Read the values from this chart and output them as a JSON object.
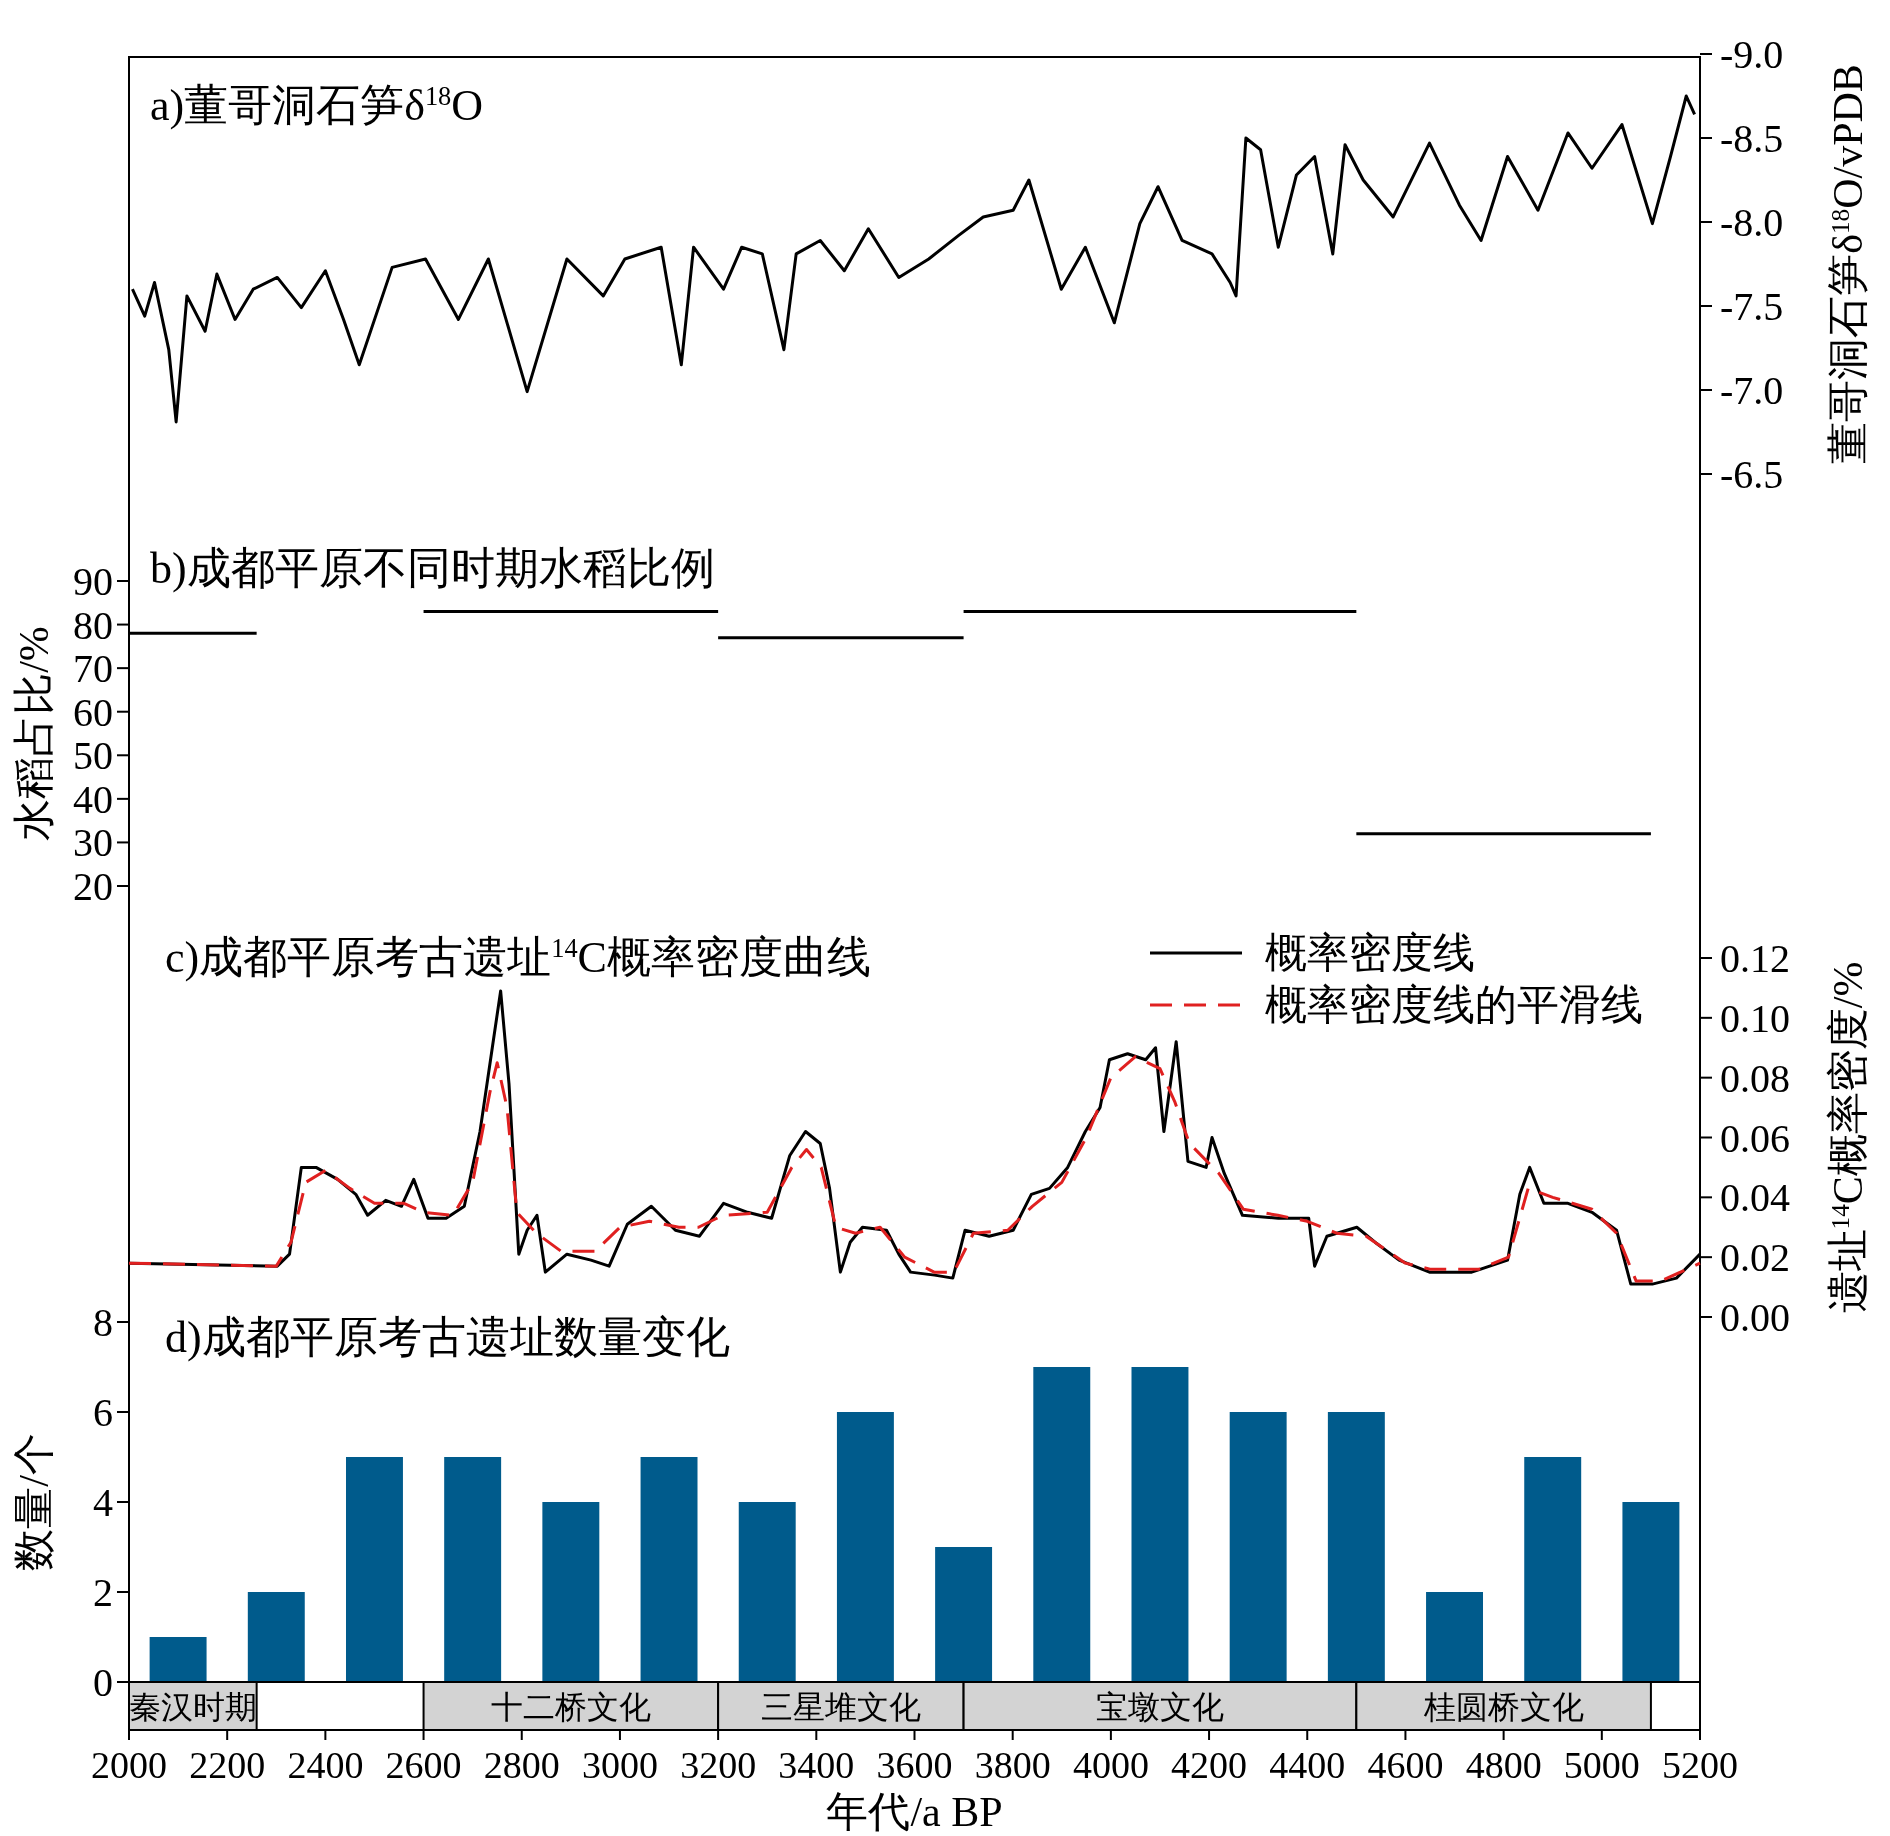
{
  "chart_data": [
    {
      "type": "line",
      "title": "a)董哥洞石笋δ$^{18}$O",
      "ylabel": "董哥洞石笋δ$^{18}$O/vPDB",
      "xlim": [
        2000,
        5200
      ],
      "ylim": [
        -6.5,
        -9.0
      ],
      "tick_labels": "y",
      "yticks": [
        {
          "value": -9.0,
          "label": "-9.0"
        },
        {
          "value": -8.5,
          "label": "-8.5"
        },
        {
          "value": -8.0,
          "label": "-8.0"
        },
        {
          "value": -7.5,
          "label": "-7.5"
        },
        {
          "value": -7.0,
          "label": "-7.0"
        },
        {
          "value": -6.5,
          "label": "-6.5"
        }
      ],
      "series": [
        {
          "color": "#000000",
          "x": [
            2007,
            2032,
            2052,
            2081,
            2096,
            2118,
            2155,
            2179,
            2216,
            2253,
            2302,
            2351,
            2400,
            2437,
            2469,
            2536,
            2604,
            2671,
            2732,
            2790,
            2811,
            2892,
            2966,
            3010,
            3084,
            3125,
            3150,
            3211,
            3248,
            3290,
            3334,
            3359,
            3408,
            3457,
            3506,
            3568,
            3629,
            3690,
            3740,
            3801,
            3833,
            3899,
            3948,
            4007,
            4059,
            4096,
            4145,
            4206,
            4243,
            4255,
            4275,
            4305,
            4341,
            4378,
            4415,
            4452,
            4477,
            4514,
            4575,
            4649,
            4710,
            4754,
            4808,
            4870,
            4931,
            4980,
            5041,
            5103,
            5140,
            5172,
            5189
          ],
          "values": [
            -7.6,
            -7.44,
            -7.64,
            -7.24,
            -6.81,
            -7.56,
            -7.35,
            -7.69,
            -7.42,
            -7.6,
            -7.67,
            -7.49,
            -7.71,
            -7.42,
            -7.15,
            -7.73,
            -7.78,
            -7.42,
            -7.78,
            -7.2,
            -6.99,
            -7.78,
            -7.56,
            -7.78,
            -7.85,
            -7.15,
            -7.85,
            -7.6,
            -7.85,
            -7.81,
            -7.24,
            -7.81,
            -7.89,
            -7.71,
            -7.96,
            -7.67,
            -7.78,
            -7.92,
            -8.03,
            -8.07,
            -8.25,
            -7.6,
            -7.85,
            -7.4,
            -7.99,
            -8.21,
            -7.89,
            -7.81,
            -7.64,
            -7.56,
            -8.5,
            -8.43,
            -7.85,
            -8.28,
            -8.39,
            -7.81,
            -8.46,
            -8.25,
            -8.03,
            -8.47,
            -8.1,
            -7.89,
            -8.39,
            -8.07,
            -8.53,
            -8.32,
            -8.58,
            -7.99,
            -8.39,
            -8.75,
            -8.64
          ]
        }
      ]
    },
    {
      "type": "line",
      "title": "b)成都平原不同时期水稻比例",
      "ylabel": "水稻占比/%",
      "xlim": [
        2000,
        5200
      ],
      "ylim": [
        20,
        90
      ],
      "yticks": [
        20,
        30,
        40,
        50,
        60,
        70,
        80,
        90
      ],
      "tick_labels": "y",
      "series": [
        {
          "color": "#000000",
          "x": [
            2000,
            2260
          ],
          "values": [
            78,
            78
          ]
        },
        {
          "color": "#000000",
          "x": [
            2600,
            3200
          ],
          "values": [
            83,
            83
          ]
        },
        {
          "color": "#000000",
          "x": [
            3200,
            3700
          ],
          "values": [
            77,
            77
          ]
        },
        {
          "color": "#000000",
          "x": [
            3700,
            4500
          ],
          "values": [
            83,
            83
          ]
        },
        {
          "color": "#000000",
          "x": [
            4500,
            5100
          ],
          "values": [
            32,
            32
          ]
        }
      ]
    },
    {
      "type": "line",
      "title": "c)成都平原考古遗址$^{14}$C概率密度曲线",
      "ylabel": "遗址$^{14}$C概率密度/%",
      "xlim": [
        2000,
        5200
      ],
      "ylim": [
        0,
        0.12
      ],
      "tick_labels": "y",
      "legend": "top right",
      "yticks": [
        {
          "value": 0,
          "label": "0.00"
        },
        {
          "value": 0.02,
          "label": "0.02"
        },
        {
          "value": 0.04,
          "label": "0.04"
        },
        {
          "value": 0.06,
          "label": "0.06"
        },
        {
          "value": 0.08,
          "label": "0.08"
        },
        {
          "value": 0.1,
          "label": "0.10"
        },
        {
          "value": 0.12,
          "label": "0.12"
        }
      ],
      "series": [
        {
          "name": "概率密度线",
          "color": "#000000",
          "x": [
            2000,
            2302,
            2327,
            2351,
            2381,
            2425,
            2462,
            2486,
            2523,
            2555,
            2580,
            2609,
            2646,
            2683,
            2715,
            2740,
            2757,
            2774,
            2794,
            2811,
            2831,
            2848,
            2892,
            2941,
            2978,
            3015,
            3064,
            3113,
            3162,
            3211,
            3260,
            3309,
            3346,
            3378,
            3408,
            3427,
            3449,
            3469,
            3494,
            3543,
            3568,
            3592,
            3641,
            3678,
            3703,
            3752,
            3801,
            3838,
            3875,
            3912,
            3948,
            3978,
            3997,
            4034,
            4071,
            4091,
            4108,
            4133,
            4157,
            4194,
            4206,
            4231,
            4268,
            4341,
            4403,
            4415,
            4440,
            4501,
            4538,
            4587,
            4649,
            4735,
            4808,
            4833,
            4853,
            4882,
            4931,
            4980,
            5030,
            5059,
            5103,
            5152,
            5200
          ],
          "values": [
            0.018,
            0.017,
            0.021,
            0.05,
            0.05,
            0.046,
            0.041,
            0.034,
            0.039,
            0.037,
            0.046,
            0.033,
            0.033,
            0.037,
            0.062,
            0.09,
            0.109,
            0.078,
            0.021,
            0.029,
            0.034,
            0.015,
            0.021,
            0.019,
            0.017,
            0.031,
            0.037,
            0.029,
            0.027,
            0.038,
            0.035,
            0.033,
            0.054,
            0.062,
            0.058,
            0.043,
            0.015,
            0.025,
            0.03,
            0.029,
            0.021,
            0.015,
            0.014,
            0.013,
            0.029,
            0.027,
            0.029,
            0.041,
            0.043,
            0.05,
            0.062,
            0.07,
            0.086,
            0.088,
            0.086,
            0.09,
            0.062,
            0.092,
            0.052,
            0.05,
            0.06,
            0.048,
            0.034,
            0.033,
            0.033,
            0.017,
            0.027,
            0.03,
            0.025,
            0.019,
            0.015,
            0.015,
            0.019,
            0.041,
            0.05,
            0.038,
            0.038,
            0.035,
            0.029,
            0.011,
            0.011,
            0.013,
            0.021
          ]
        },
        {
          "name": "概率密度线的平滑线",
          "color": "#e02020",
          "line_style": "dashed",
          "x": [
            2000,
            2300,
            2330,
            2360,
            2400,
            2450,
            2500,
            2560,
            2600,
            2660,
            2700,
            2735,
            2750,
            2770,
            2790,
            2830,
            2880,
            2950,
            3000,
            3060,
            3120,
            3160,
            3210,
            3300,
            3350,
            3380,
            3410,
            3440,
            3480,
            3530,
            3580,
            3640,
            3680,
            3720,
            3790,
            3840,
            3900,
            3950,
            4000,
            4050,
            4100,
            4130,
            4160,
            4220,
            4270,
            4340,
            4400,
            4460,
            4520,
            4600,
            4650,
            4750,
            4810,
            4850,
            4900,
            4980,
            5030,
            5070,
            5120,
            5200
          ],
          "values": [
            0.018,
            0.017,
            0.025,
            0.045,
            0.049,
            0.043,
            0.038,
            0.038,
            0.035,
            0.034,
            0.045,
            0.075,
            0.085,
            0.07,
            0.035,
            0.028,
            0.022,
            0.022,
            0.03,
            0.032,
            0.03,
            0.03,
            0.034,
            0.035,
            0.05,
            0.056,
            0.05,
            0.03,
            0.028,
            0.03,
            0.02,
            0.015,
            0.015,
            0.028,
            0.029,
            0.037,
            0.045,
            0.06,
            0.08,
            0.087,
            0.083,
            0.072,
            0.058,
            0.048,
            0.036,
            0.034,
            0.032,
            0.028,
            0.027,
            0.018,
            0.016,
            0.016,
            0.02,
            0.043,
            0.04,
            0.036,
            0.028,
            0.012,
            0.012,
            0.018
          ]
        }
      ]
    },
    {
      "type": "bar",
      "title": "d)成都平原考古遗址数量变化",
      "ylabel": "数量/个",
      "xlim": [
        2000,
        5200
      ],
      "ylim": [
        0,
        8
      ],
      "yticks": [
        0,
        2,
        4,
        6,
        8
      ],
      "tick_labels": "y",
      "x": [
        2100,
        2300,
        2500,
        2700,
        2900,
        3100,
        3300,
        3500,
        3700,
        3900,
        4100,
        4300,
        4500,
        4700,
        4900,
        5100
      ],
      "values": [
        1,
        2,
        5,
        5,
        4,
        5,
        4,
        6,
        3,
        7,
        7,
        6,
        6,
        2,
        5,
        4
      ],
      "color": "#005b8c"
    },
    {
      "type": "bar",
      "orientation": "horizontal",
      "categories": [
        null
      ],
      "xlabel": "年代/a BP",
      "xlim": [
        2000,
        5200
      ],
      "xticks": [
        2000,
        2200,
        2400,
        2600,
        2800,
        3000,
        3200,
        3400,
        3600,
        3800,
        4000,
        4200,
        4400,
        4600,
        4800,
        5000,
        5200
      ],
      "series": [
        {
          "name": "秦汉时期",
          "color": "#d3d3d3",
          "base": [
            2000
          ],
          "values": [
            260
          ]
        },
        {
          "name": "十二桥文化",
          "color": "#d3d3d3",
          "base": [
            2600
          ],
          "values": [
            600
          ]
        },
        {
          "name": "三星堆文化",
          "color": "#d3d3d3",
          "base": [
            3200
          ],
          "values": [
            500
          ]
        },
        {
          "name": "宝墩文化",
          "color": "#d3d3d3",
          "base": [
            3700
          ],
          "values": [
            800
          ]
        },
        {
          "name": "桂圆桥文化",
          "color": "#d3d3d3",
          "base": [
            4500
          ],
          "values": [
            600
          ]
        }
      ]
    }
  ]
}
